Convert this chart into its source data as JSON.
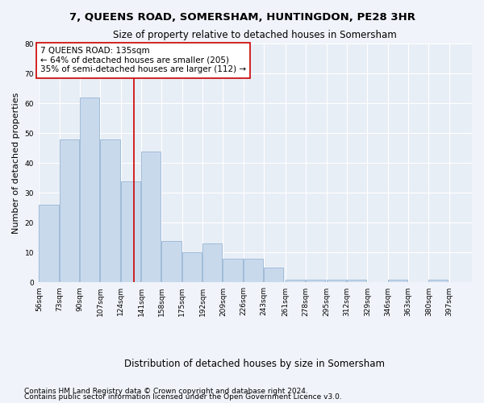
{
  "title": "7, QUEENS ROAD, SOMERSHAM, HUNTINGDON, PE28 3HR",
  "subtitle": "Size of property relative to detached houses in Somersham",
  "xlabel": "Distribution of detached houses by size in Somersham",
  "ylabel": "Number of detached properties",
  "bar_color": "#c9d9ec",
  "bar_edge_color": "#a0bcd8",
  "background_color": "#e8eef6",
  "grid_color": "#ffffff",
  "bin_labels": [
    "56sqm",
    "73sqm",
    "90sqm",
    "107sqm",
    "124sqm",
    "141sqm",
    "158sqm",
    "175sqm",
    "192sqm",
    "209sqm",
    "226sqm",
    "243sqm",
    "261sqm",
    "278sqm",
    "295sqm",
    "312sqm",
    "329sqm",
    "346sqm",
    "363sqm",
    "380sqm",
    "397sqm"
  ],
  "bar_values": [
    26,
    48,
    62,
    48,
    34,
    44,
    14,
    10,
    13,
    8,
    8,
    5,
    1,
    1,
    1,
    1,
    0,
    1,
    0,
    1,
    0
  ],
  "bin_edges": [
    56,
    73,
    90,
    107,
    124,
    141,
    158,
    175,
    192,
    209,
    226,
    243,
    261,
    278,
    295,
    312,
    329,
    346,
    363,
    380,
    397,
    414
  ],
  "vline_x": 135,
  "vline_color": "#cc0000",
  "annotation_text": "7 QUEENS ROAD: 135sqm\n← 64% of detached houses are smaller (205)\n35% of semi-detached houses are larger (112) →",
  "annotation_box_color": "#ffffff",
  "annotation_box_edge_color": "#cc0000",
  "footer1": "Contains HM Land Registry data © Crown copyright and database right 2024.",
  "footer2": "Contains public sector information licensed under the Open Government Licence v3.0.",
  "ylim": [
    0,
    80
  ],
  "yticks": [
    0,
    10,
    20,
    30,
    40,
    50,
    60,
    70,
    80
  ],
  "title_fontsize": 9.5,
  "subtitle_fontsize": 8.5,
  "xlabel_fontsize": 8.5,
  "ylabel_fontsize": 8,
  "tick_fontsize": 6.5,
  "annotation_fontsize": 7.5,
  "footer_fontsize": 6.5
}
